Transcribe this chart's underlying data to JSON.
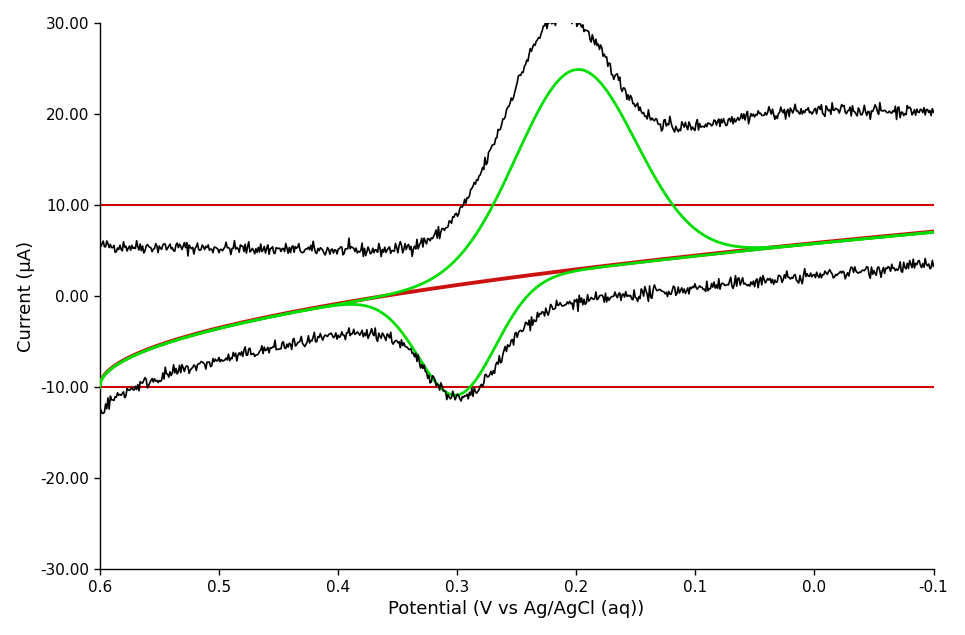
{
  "title": "",
  "xlabel": "Potential (V vs Ag/AgCl (aq))",
  "ylabel": "Current (μA)",
  "xlim": [
    0.6,
    -0.1
  ],
  "ylim": [
    -30,
    30
  ],
  "yticks": [
    -30.0,
    -20.0,
    -10.0,
    0.0,
    10.0,
    20.0,
    30.0
  ],
  "xticks": [
    0.6,
    0.5,
    0.4,
    0.3,
    0.2,
    0.1,
    0.0,
    -0.1
  ],
  "hlines": [
    10.0,
    -10.0
  ],
  "hline_color": "#cc0000",
  "hline_lw": 1.5,
  "background_color": "#ffffff",
  "black_color": "#000000",
  "green_color": "#00dd00",
  "red_color": "#cc1111"
}
